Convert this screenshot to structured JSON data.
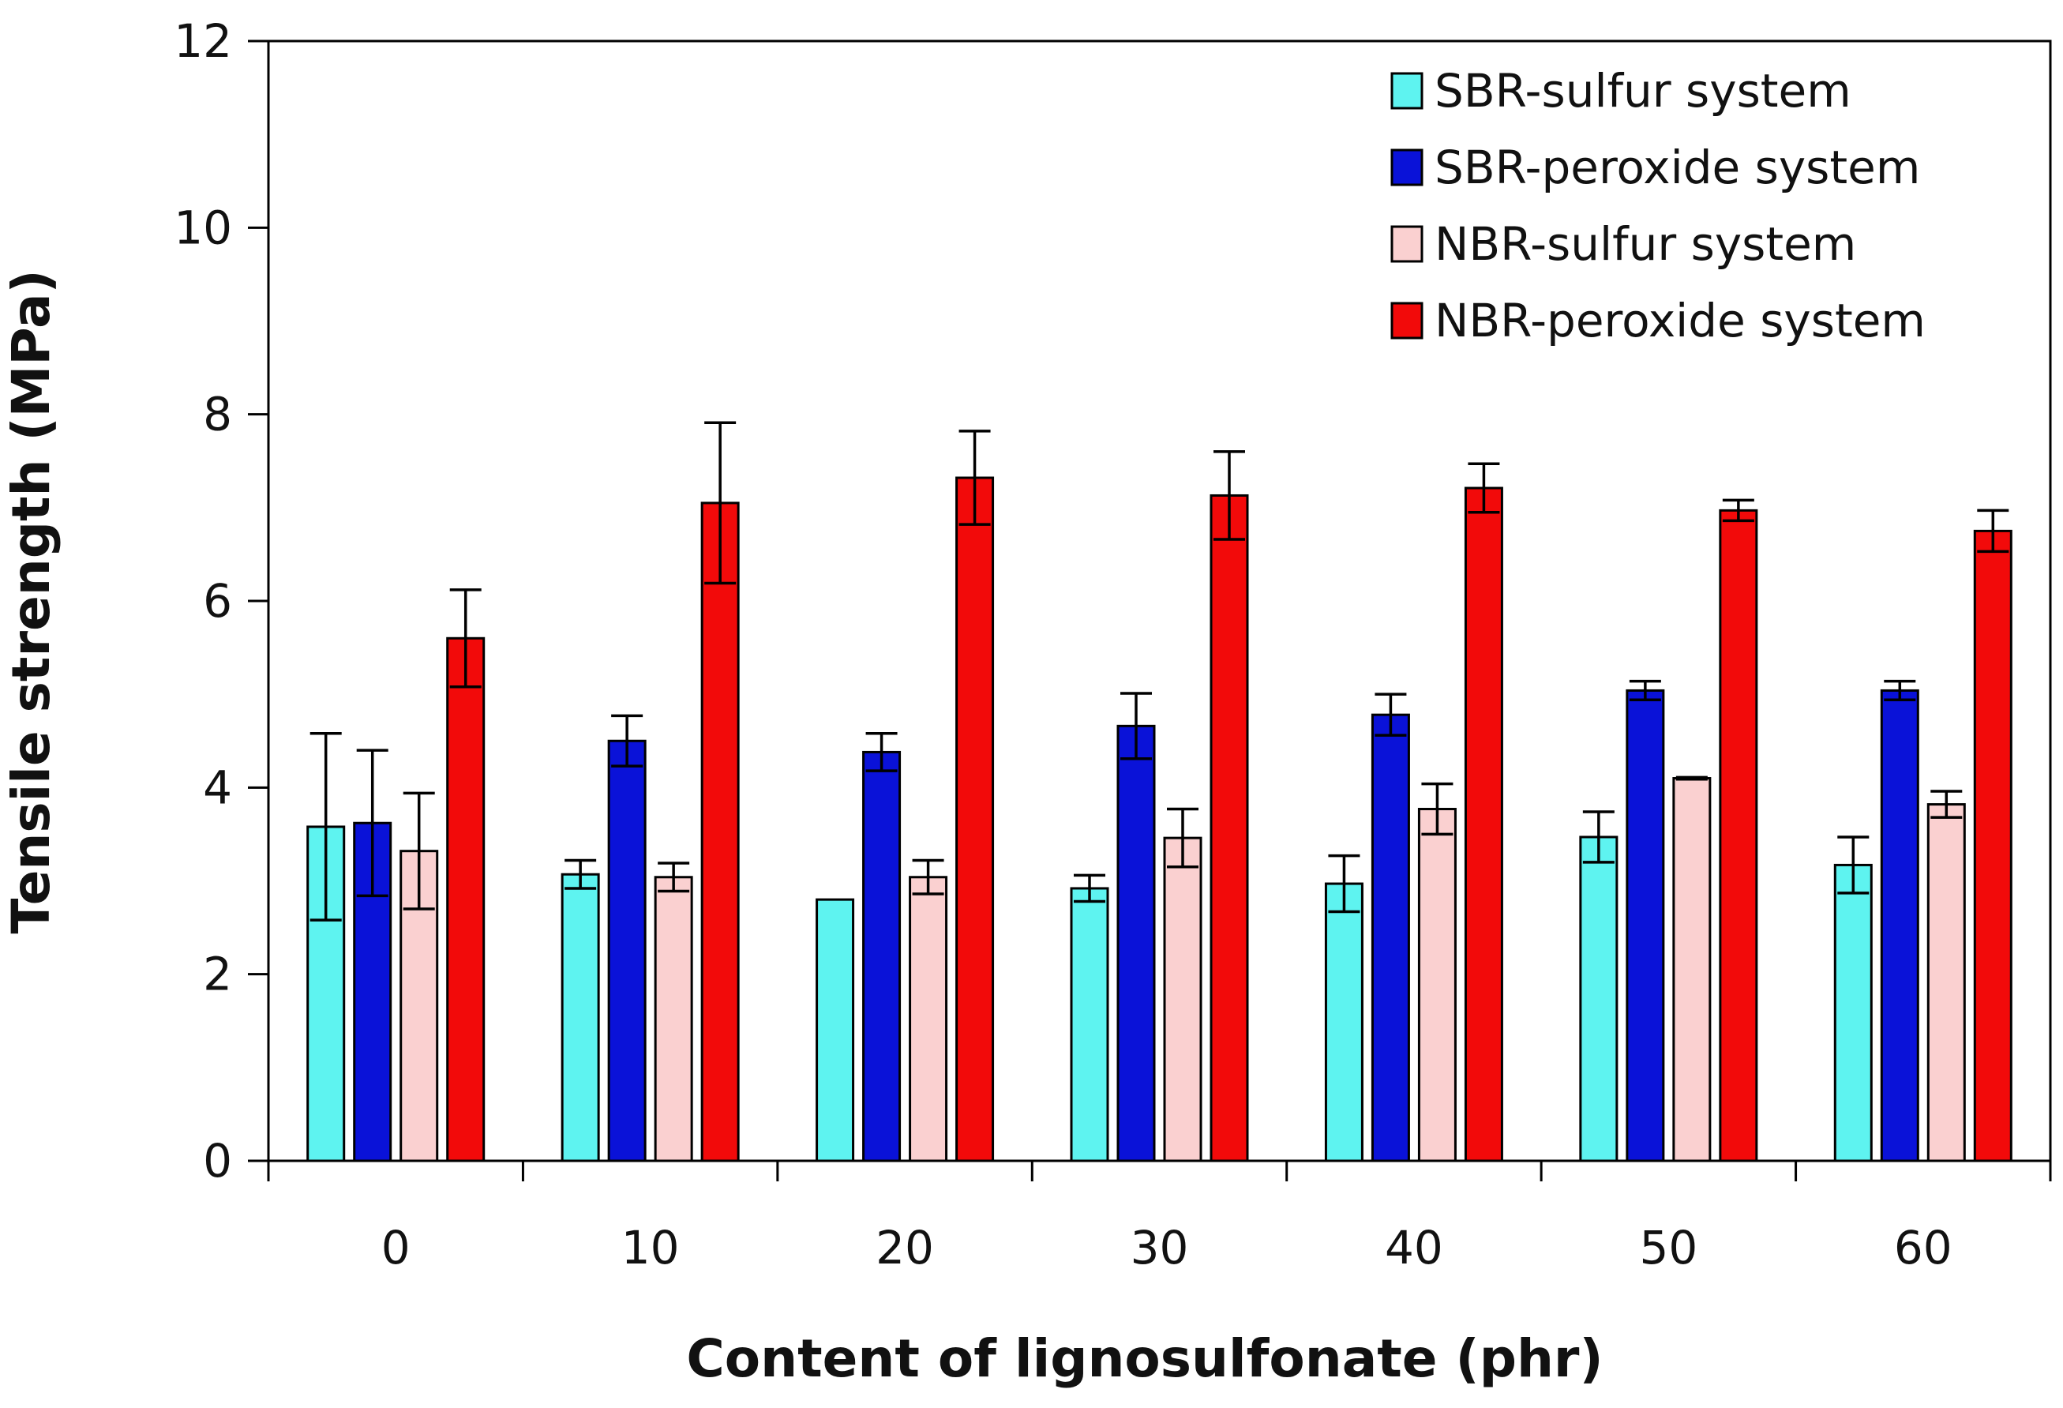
{
  "chart_data": {
    "type": "bar",
    "title": "",
    "xlabel": "Content of lignosulfonate (phr)",
    "ylabel": "Tensile strength (MPa)",
    "categories": [
      "0",
      "10",
      "20",
      "30",
      "40",
      "50",
      "60"
    ],
    "ylim": [
      0,
      12
    ],
    "yticks": [
      0,
      2,
      4,
      6,
      8,
      10,
      12
    ],
    "grid": false,
    "legend_position": "top-right",
    "series": [
      {
        "name": "SBR-sulfur system",
        "color": "#5EF3F0",
        "values": [
          3.58,
          3.07,
          2.8,
          2.92,
          2.97,
          3.47,
          3.17
        ],
        "errors": [
          1.0,
          0.15,
          0.0,
          0.14,
          0.3,
          0.27,
          0.3
        ]
      },
      {
        "name": "SBR-peroxide system",
        "color": "#0A12D8",
        "values": [
          3.62,
          4.5,
          4.38,
          4.66,
          4.78,
          5.04,
          5.04
        ],
        "errors": [
          0.78,
          0.27,
          0.2,
          0.35,
          0.22,
          0.1,
          0.1
        ]
      },
      {
        "name": "NBR-sulfur system",
        "color": "#FAD0D0",
        "values": [
          3.32,
          3.04,
          3.04,
          3.46,
          3.77,
          4.1,
          3.82
        ],
        "errors": [
          0.62,
          0.15,
          0.18,
          0.31,
          0.27,
          0.01,
          0.14
        ]
      },
      {
        "name": "NBR-peroxide system",
        "color": "#F20A0A",
        "values": [
          5.6,
          7.05,
          7.32,
          7.13,
          7.21,
          6.97,
          6.75
        ],
        "errors": [
          0.52,
          0.86,
          0.5,
          0.47,
          0.26,
          0.11,
          0.22
        ]
      }
    ]
  }
}
